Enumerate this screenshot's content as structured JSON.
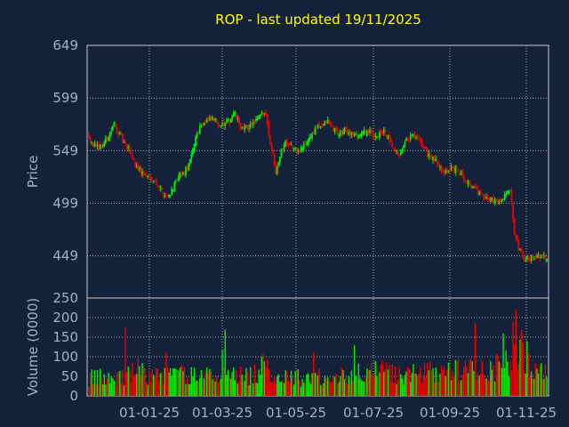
{
  "title": "ROP - last updated 19/11/2025",
  "colors": {
    "background": "#13213a",
    "title": "#ffff00",
    "text": "#9fb3c8",
    "grid": "#c8c8c8",
    "up": "#00ee00",
    "down": "#ee0000"
  },
  "chart_data": [
    {
      "type": "candlestick",
      "name": "price",
      "ylabel": "Price",
      "ylim": [
        409,
        649
      ],
      "yticks": [
        449,
        499,
        549,
        599,
        649
      ],
      "xticks": [
        "01-01-25",
        "01-03-25",
        "01-05-25",
        "01-07-25",
        "01-09-25",
        "01-11-25"
      ],
      "grid": true,
      "close_path": [
        [
          0,
          563
        ],
        [
          5,
          551
        ],
        [
          10,
          555
        ],
        [
          14,
          563
        ],
        [
          18,
          574
        ],
        [
          22,
          564
        ],
        [
          26,
          553
        ],
        [
          29,
          549
        ],
        [
          33,
          536
        ],
        [
          37,
          529
        ],
        [
          41,
          525
        ],
        [
          45,
          523
        ],
        [
          49,
          517
        ],
        [
          53,
          508
        ],
        [
          56,
          505
        ],
        [
          60,
          514
        ],
        [
          64,
          524
        ],
        [
          68,
          528
        ],
        [
          72,
          538
        ],
        [
          76,
          562
        ],
        [
          80,
          575
        ],
        [
          84,
          577
        ],
        [
          88,
          579
        ],
        [
          92,
          575
        ],
        [
          96,
          573
        ],
        [
          100,
          577
        ],
        [
          103,
          585
        ],
        [
          106,
          577
        ],
        [
          110,
          568
        ],
        [
          114,
          573
        ],
        [
          118,
          575
        ],
        [
          122,
          582
        ],
        [
          126,
          585
        ],
        [
          128,
          565
        ],
        [
          131,
          545
        ],
        [
          133,
          530
        ],
        [
          136,
          545
        ],
        [
          140,
          558
        ],
        [
          143,
          556
        ],
        [
          146,
          550
        ],
        [
          150,
          548
        ],
        [
          154,
          555
        ],
        [
          158,
          563
        ],
        [
          162,
          570
        ],
        [
          166,
          574
        ],
        [
          170,
          576
        ],
        [
          174,
          570
        ],
        [
          178,
          565
        ],
        [
          182,
          568
        ],
        [
          186,
          566
        ],
        [
          190,
          563
        ],
        [
          194,
          565
        ],
        [
          198,
          567
        ],
        [
          202,
          565
        ],
        [
          206,
          563
        ],
        [
          210,
          567
        ],
        [
          214,
          557
        ],
        [
          218,
          547
        ],
        [
          222,
          545
        ],
        [
          226,
          558
        ],
        [
          230,
          563
        ],
        [
          234,
          560
        ],
        [
          238,
          553
        ],
        [
          242,
          545
        ],
        [
          246,
          539
        ],
        [
          250,
          535
        ],
        [
          254,
          528
        ],
        [
          258,
          533
        ],
        [
          262,
          530
        ],
        [
          266,
          525
        ],
        [
          270,
          519
        ],
        [
          274,
          514
        ],
        [
          278,
          509
        ],
        [
          282,
          502
        ],
        [
          286,
          504
        ],
        [
          290,
          500
        ],
        [
          294,
          503
        ],
        [
          296,
          507
        ],
        [
          300,
          510
        ],
        [
          303,
          468
        ],
        [
          306,
          455
        ],
        [
          310,
          445
        ],
        [
          314,
          447
        ],
        [
          318,
          449
        ],
        [
          322,
          448
        ],
        [
          326,
          446
        ]
      ],
      "volume": {
        "ylabel": "Volume (0000)",
        "ylim": [
          0,
          250
        ],
        "yticks": [
          0,
          50,
          100,
          150,
          200,
          250
        ],
        "envelope": [
          [
            0,
            50
          ],
          [
            10,
            52
          ],
          [
            20,
            55
          ],
          [
            30,
            60
          ],
          [
            35,
            85
          ],
          [
            40,
            55
          ],
          [
            50,
            58
          ],
          [
            60,
            62
          ],
          [
            70,
            60
          ],
          [
            80,
            58
          ],
          [
            90,
            56
          ],
          [
            95,
            90
          ],
          [
            100,
            60
          ],
          [
            110,
            58
          ],
          [
            120,
            62
          ],
          [
            125,
            85
          ],
          [
            130,
            60
          ],
          [
            140,
            55
          ],
          [
            150,
            52
          ],
          [
            160,
            54
          ],
          [
            170,
            56
          ],
          [
            180,
            58
          ],
          [
            190,
            62
          ],
          [
            200,
            65
          ],
          [
            210,
            68
          ],
          [
            220,
            62
          ],
          [
            230,
            60
          ],
          [
            240,
            66
          ],
          [
            250,
            70
          ],
          [
            260,
            72
          ],
          [
            270,
            74
          ],
          [
            280,
            76
          ],
          [
            290,
            80
          ],
          [
            300,
            88
          ],
          [
            303,
            140
          ],
          [
            306,
            160
          ],
          [
            310,
            95
          ],
          [
            315,
            85
          ],
          [
            320,
            75
          ],
          [
            326,
            80
          ]
        ],
        "spikes": [
          [
            26,
            175
          ],
          [
            55,
            110
          ],
          [
            97,
            170
          ],
          [
            160,
            110
          ],
          [
            189,
            130
          ],
          [
            275,
            185
          ],
          [
            295,
            160
          ],
          [
            302,
            190
          ],
          [
            304,
            220
          ],
          [
            312,
            140
          ]
        ]
      }
    }
  ]
}
